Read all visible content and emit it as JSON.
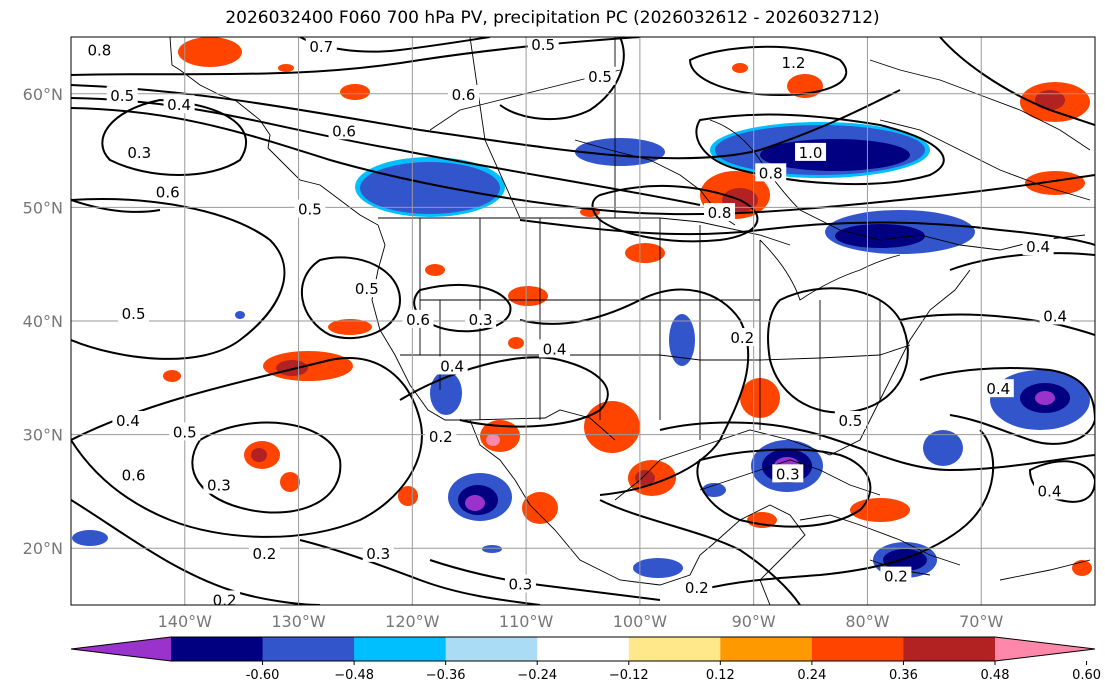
{
  "title": "2026032400 F060 700 hPa PV, precipitation PC (2026032612 - 2026032712)",
  "map": {
    "lon_range": [
      -150,
      -60
    ],
    "lat_range": [
      15,
      65
    ],
    "lon_ticks": [
      {
        "value": -140,
        "label": "140°W"
      },
      {
        "value": -130,
        "label": "130°W"
      },
      {
        "value": -120,
        "label": "120°W"
      },
      {
        "value": -110,
        "label": "110°W"
      },
      {
        "value": -100,
        "label": "100°W"
      },
      {
        "value": -90,
        "label": "90°W"
      },
      {
        "value": -80,
        "label": "80°W"
      },
      {
        "value": -70,
        "label": "70°W"
      }
    ],
    "lat_ticks": [
      {
        "value": 20,
        "label": "20°N"
      },
      {
        "value": 30,
        "label": "30°N"
      },
      {
        "value": 40,
        "label": "40°N"
      },
      {
        "value": 50,
        "label": "50°N"
      },
      {
        "value": 60,
        "label": "60°N"
      }
    ],
    "grid": true
  },
  "colorbar": {
    "ticks": [
      "-0.60",
      "−0.48",
      "−0.36",
      "−0.24",
      "−0.12",
      "0.12",
      "0.24",
      "0.36",
      "0.48",
      "0.60"
    ],
    "colors": [
      "#9933cc",
      "#000080",
      "#3355cc",
      "#00bfff",
      "#aadcf5",
      "#ffffff",
      "#ffe88a",
      "#ff9900",
      "#ff4400",
      "#b22222",
      "#ff88aa"
    ],
    "extend": "both"
  },
  "contour_labels": [
    {
      "text": "0.8",
      "lon": -147.5,
      "lat": 63.8
    },
    {
      "text": "0.7",
      "lon": -128.0,
      "lat": 64.1
    },
    {
      "text": "0.5",
      "lon": -108.5,
      "lat": 64.3
    },
    {
      "text": "0.5",
      "lon": -103.5,
      "lat": 61.5
    },
    {
      "text": "0.5",
      "lon": -145.5,
      "lat": 59.8
    },
    {
      "text": "0.4",
      "lon": -140.5,
      "lat": 59.0
    },
    {
      "text": "0.6",
      "lon": -115.5,
      "lat": 59.9
    },
    {
      "text": "0.6",
      "lon": -126.0,
      "lat": 56.7
    },
    {
      "text": "0.3",
      "lon": -144.0,
      "lat": 54.8
    },
    {
      "text": "0.6",
      "lon": -141.5,
      "lat": 51.3
    },
    {
      "text": "0.5",
      "lon": -129.0,
      "lat": 49.8
    },
    {
      "text": "0.5",
      "lon": -124.0,
      "lat": 42.8
    },
    {
      "text": "0.5",
      "lon": -144.5,
      "lat": 40.6
    },
    {
      "text": "0.6",
      "lon": -119.5,
      "lat": 40.1
    },
    {
      "text": "0.3",
      "lon": -114.0,
      "lat": 40.1
    },
    {
      "text": "0.4",
      "lon": -116.5,
      "lat": 36.0
    },
    {
      "text": "0.4",
      "lon": -107.5,
      "lat": 37.5
    },
    {
      "text": "0.2",
      "lon": -117.5,
      "lat": 29.8
    },
    {
      "text": "0.4",
      "lon": -145.0,
      "lat": 31.2
    },
    {
      "text": "0.5",
      "lon": -140.0,
      "lat": 30.2
    },
    {
      "text": "0.6",
      "lon": -144.5,
      "lat": 26.4
    },
    {
      "text": "0.3",
      "lon": -137.0,
      "lat": 25.5
    },
    {
      "text": "0.2",
      "lon": -133.0,
      "lat": 19.5
    },
    {
      "text": "0.3",
      "lon": -123.0,
      "lat": 19.5
    },
    {
      "text": "0.3",
      "lon": -110.5,
      "lat": 16.8
    },
    {
      "text": "0.2",
      "lon": -136.5,
      "lat": 15.4
    },
    {
      "text": "1.2",
      "lon": -86.5,
      "lat": 62.7
    },
    {
      "text": "1.0",
      "lon": -85.0,
      "lat": 54.8
    },
    {
      "text": "0.8",
      "lon": -88.5,
      "lat": 53.0
    },
    {
      "text": "0.8",
      "lon": -93.0,
      "lat": 49.5
    },
    {
      "text": "0.4",
      "lon": -65.0,
      "lat": 46.5
    },
    {
      "text": "0.4",
      "lon": -63.5,
      "lat": 40.4
    },
    {
      "text": "0.2",
      "lon": -91.0,
      "lat": 38.5
    },
    {
      "text": "0.4",
      "lon": -68.5,
      "lat": 34.0
    },
    {
      "text": "0.5",
      "lon": -81.5,
      "lat": 31.2
    },
    {
      "text": "0.3",
      "lon": -87.0,
      "lat": 26.5
    },
    {
      "text": "0.4",
      "lon": -64.0,
      "lat": 25.0
    },
    {
      "text": "0.2",
      "lon": -77.5,
      "lat": 17.5
    },
    {
      "text": "0.2",
      "lon": -95.0,
      "lat": 16.5
    }
  ]
}
